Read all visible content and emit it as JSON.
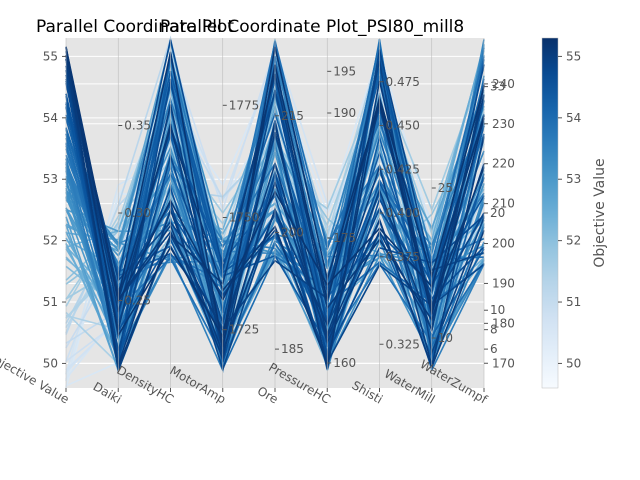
{
  "chart_data": {
    "type": "parallel_coordinates",
    "title": "Parallel Coordinate Plot",
    "subtitle": "Parallel Coordinate Plot_PSI80_mill8",
    "axes": [
      {
        "name": "Objective Value",
        "range": [
          49.6,
          55.3
        ],
        "ticks": [
          "50",
          "51",
          "52",
          "53",
          "54",
          "55"
        ],
        "tick_values": [
          50,
          51,
          52,
          53,
          54,
          55
        ]
      },
      {
        "name": "Daiki",
        "range": [
          0.2,
          0.4
        ],
        "ticks": [
          "0.25",
          "0.30",
          "0.35"
        ],
        "tick_values": [
          0.25,
          0.3,
          0.35
        ]
      },
      {
        "name": "DensityHC",
        "range": [
          1.1,
          1.5
        ],
        "ticks": [],
        "tick_values": []
      },
      {
        "name": "MotorAmp",
        "range": [
          1712,
          1790
        ],
        "ticks": [
          "1725",
          "1750",
          "1775"
        ],
        "tick_values": [
          1725,
          1750,
          1775
        ]
      },
      {
        "name": "Ore",
        "range": [
          180,
          225
        ],
        "ticks": [
          "185",
          "200",
          "215"
        ],
        "tick_values": [
          185,
          200,
          215
        ]
      },
      {
        "name": "PressureHC",
        "range": [
          157,
          199
        ],
        "ticks": [
          "160",
          "175",
          "190",
          "195"
        ],
        "tick_values": [
          160,
          175,
          190,
          195
        ]
      },
      {
        "name": "Shisti",
        "range": [
          0.3,
          0.5
        ],
        "ticks": [
          "0.325",
          "0.375",
          "0.400",
          "0.425",
          "0.450",
          "0.475"
        ],
        "tick_values": [
          0.325,
          0.375,
          0.4,
          0.425,
          0.45,
          0.475
        ]
      },
      {
        "name": "WaterMill",
        "range": [
          5,
          40
        ],
        "ticks": [
          "10",
          "25"
        ],
        "tick_values": [
          10,
          25
        ]
      },
      {
        "name": "WaterZumpf",
        "range": [
          2,
          38
        ],
        "ticks": [
          "6",
          "8",
          "10",
          "20",
          "33"
        ],
        "tick_values": [
          6,
          8,
          10,
          20,
          33
        ]
      }
    ],
    "right_axis": {
      "ticks": [
        "170",
        "180",
        "190",
        "200",
        "210",
        "220",
        "230",
        "240"
      ],
      "tick_values": [
        170,
        180,
        190,
        200,
        210,
        220,
        230,
        240
      ],
      "range": [
        163.8,
        251.5
      ]
    },
    "colorbar": {
      "label": "Objective Value",
      "ticks": [
        "50",
        "51",
        "52",
        "53",
        "54",
        "55"
      ],
      "tick_values": [
        50,
        51,
        52,
        53,
        54,
        55
      ],
      "range": [
        49.6,
        55.3
      ],
      "colormap": "Blues"
    },
    "grid": true
  },
  "colors": {
    "plot_bg": "#e5e5e5",
    "grid": "#ffffff",
    "text": "#555555",
    "title": "#000000",
    "line_dark": "#08306b",
    "line_light": "#deebf7"
  }
}
